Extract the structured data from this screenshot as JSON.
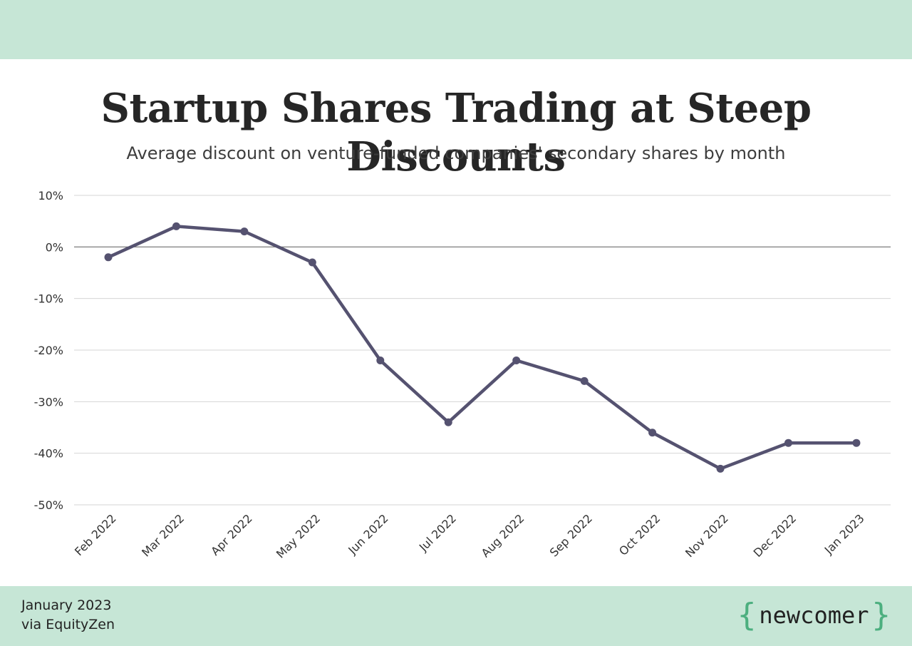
{
  "header": {
    "title": "Startup Shares Trading at Steep Discounts",
    "subtitle": "Average discount on venture-funded companies' secondary shares by month"
  },
  "footer": {
    "date": "January 2023",
    "source": "via EquityZen",
    "brand": "newcomer",
    "brand_open": "{",
    "brand_close": "}"
  },
  "colors": {
    "band": "#c6e6d6",
    "line": "#555270",
    "brace": "#4caf7f"
  },
  "chart_data": {
    "type": "line",
    "title": "Startup Shares Trading at Steep Discounts",
    "subtitle": "Average discount on venture-funded companies' secondary shares by month",
    "x": [
      "Feb 2022",
      "Mar 2022",
      "Apr 2022",
      "May 2022",
      "Jun 2022",
      "Jul 2022",
      "Aug 2022",
      "Sep 2022",
      "Oct 2022",
      "Nov 2022",
      "Dec 2022",
      "Jan 2023"
    ],
    "series": [
      {
        "values": [
          -2,
          4,
          3,
          -3,
          -22,
          -34,
          -22,
          -26,
          -36,
          -43,
          -38,
          -38
        ]
      }
    ],
    "ylim": [
      -50,
      10
    ],
    "yticks": [
      10,
      0,
      -10,
      -20,
      -30,
      -40,
      -50
    ],
    "ytick_labels": [
      "10%",
      "0%",
      "-10%",
      "-20%",
      "-30%",
      "-40%",
      "-50%"
    ],
    "grid": true,
    "legend": "none"
  }
}
